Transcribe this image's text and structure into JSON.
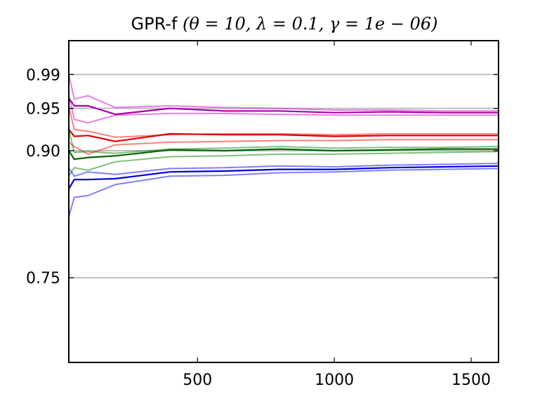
{
  "chart_data": {
    "type": "line",
    "title": "GPR-f (θ = 10, λ = 0.1, γ = 1e − 06)",
    "title_prefix": "GPR-f ",
    "title_math": "(θ = 10, λ = 0.1, γ = 1e − 06)",
    "xlabel": "",
    "ylabel": "",
    "xlim": [
      30,
      1600
    ],
    "ylim": [
      0.65,
      1.03
    ],
    "grid": "horizontal lines at y ticks",
    "legend": "none",
    "xticks": [
      500,
      1000,
      1500
    ],
    "xtick_labels": [
      "500",
      "1000",
      "1500"
    ],
    "yticks": [
      0.75,
      0.9,
      0.95,
      0.99
    ],
    "ytick_labels": [
      "0.75",
      "0.90",
      "0.95",
      "0.99"
    ],
    "x": [
      30,
      50,
      100,
      200,
      400,
      600,
      800,
      1000,
      1200,
      1400,
      1600
    ],
    "series": [
      {
        "color": "#bfbfbf",
        "alpha": 1,
        "width": 2,
        "values": [
          0.99,
          0.99,
          0.99,
          0.99,
          0.99,
          0.99,
          0.99,
          0.99,
          0.99,
          0.99,
          0.99
        ]
      },
      {
        "color": "#bfbfbf",
        "alpha": 1,
        "width": 2,
        "values": [
          0.95,
          0.95,
          0.95,
          0.95,
          0.95,
          0.95,
          0.95,
          0.95,
          0.95,
          0.95,
          0.95
        ]
      },
      {
        "color": "#bfbfbf",
        "alpha": 1,
        "width": 2,
        "values": [
          0.9,
          0.9,
          0.9,
          0.9,
          0.9,
          0.9,
          0.9,
          0.9,
          0.9,
          0.9,
          0.9
        ]
      },
      {
        "color": "#bfbfbf",
        "alpha": 1,
        "width": 2,
        "values": [
          0.75,
          0.75,
          0.75,
          0.75,
          0.75,
          0.75,
          0.75,
          0.75,
          0.75,
          0.75,
          0.75
        ]
      },
      {
        "color": "#cc00cc",
        "alpha": 0.5,
        "width": 2,
        "values": [
          0.99,
          0.961,
          0.965,
          0.951,
          0.953,
          0.951,
          0.95,
          0.948,
          0.948,
          0.947,
          0.947
        ]
      },
      {
        "color": "#cc00cc",
        "alpha": 0.5,
        "width": 2,
        "values": [
          0.965,
          0.937,
          0.933,
          0.942,
          0.944,
          0.944,
          0.943,
          0.942,
          0.942,
          0.942,
          0.942
        ]
      },
      {
        "color": "#aa00aa",
        "alpha": 1,
        "width": 2.2,
        "values": [
          0.962,
          0.953,
          0.953,
          0.943,
          0.95,
          0.947,
          0.947,
          0.945,
          0.946,
          0.945,
          0.945
        ]
      },
      {
        "color": "#ff0000",
        "alpha": 0.5,
        "width": 2,
        "values": [
          0.952,
          0.925,
          0.923,
          0.916,
          0.919,
          0.92,
          0.92,
          0.919,
          0.92,
          0.92,
          0.92
        ]
      },
      {
        "color": "#ff0000",
        "alpha": 0.5,
        "width": 2,
        "values": [
          0.91,
          0.905,
          0.896,
          0.907,
          0.91,
          0.911,
          0.912,
          0.912,
          0.913,
          0.913,
          0.913
        ]
      },
      {
        "color": "#e00000",
        "alpha": 1,
        "width": 2.2,
        "values": [
          0.925,
          0.917,
          0.918,
          0.911,
          0.92,
          0.919,
          0.919,
          0.917,
          0.918,
          0.918,
          0.918
        ]
      },
      {
        "color": "#008000",
        "alpha": 0.5,
        "width": 2,
        "values": [
          0.925,
          0.898,
          0.899,
          0.897,
          0.902,
          0.903,
          0.905,
          0.903,
          0.904,
          0.904,
          0.905
        ]
      },
      {
        "color": "#008000",
        "alpha": 0.5,
        "width": 2,
        "values": [
          0.87,
          0.88,
          0.877,
          0.887,
          0.893,
          0.894,
          0.896,
          0.896,
          0.897,
          0.898,
          0.899
        ]
      },
      {
        "color": "#006400",
        "alpha": 1,
        "width": 2.2,
        "values": [
          0.9,
          0.89,
          0.892,
          0.894,
          0.901,
          0.9,
          0.902,
          0.9,
          0.901,
          0.902,
          0.902
        ]
      },
      {
        "color": "#0000ff",
        "alpha": 0.5,
        "width": 2,
        "values": [
          0.88,
          0.87,
          0.875,
          0.872,
          0.879,
          0.88,
          0.882,
          0.881,
          0.883,
          0.884,
          0.885
        ]
      },
      {
        "color": "#0000ff",
        "alpha": 0.5,
        "width": 2,
        "values": [
          0.822,
          0.845,
          0.847,
          0.86,
          0.87,
          0.871,
          0.874,
          0.875,
          0.877,
          0.878,
          0.879
        ]
      },
      {
        "color": "#0000dd",
        "alpha": 1,
        "width": 2.2,
        "values": [
          0.855,
          0.866,
          0.866,
          0.867,
          0.875,
          0.876,
          0.878,
          0.878,
          0.88,
          0.881,
          0.882
        ]
      }
    ]
  }
}
